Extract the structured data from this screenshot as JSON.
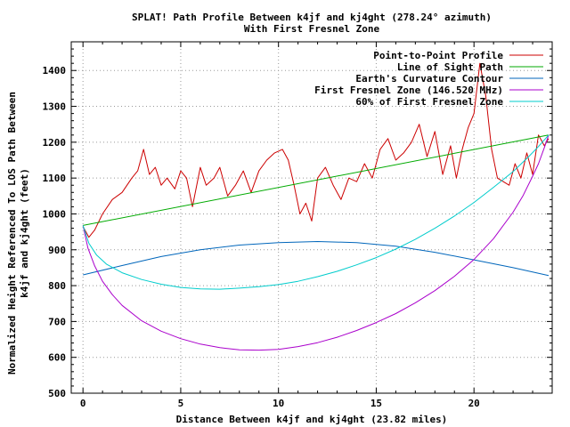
{
  "chart_data": {
    "type": "line",
    "title": "SPLAT! Path Profile Between k4jf and kj4ght (278.24° azimuth)",
    "subtitle": "With First Fresnel Zone",
    "xlabel": "Distance Between k4jf and kj4ght (23.82 miles)",
    "ylabel_line1": "Normalized Height Referenced To LOS Path Between",
    "ylabel_line2": "k4jf and kj4ght (feet)",
    "xlim": [
      -0.6,
      24.0
    ],
    "ylim": [
      500,
      1480
    ],
    "xticks": [
      0,
      5,
      10,
      15,
      20
    ],
    "yticks": [
      500,
      600,
      700,
      800,
      900,
      1000,
      1100,
      1200,
      1300,
      1400
    ],
    "grid": true,
    "legend_position": "top-right",
    "series": [
      {
        "name": "Point-to-Point Profile",
        "color": "#cc0000",
        "x": [
          0,
          0.3,
          0.6,
          1.0,
          1.5,
          2.0,
          2.5,
          2.8,
          3.1,
          3.4,
          3.7,
          4.0,
          4.3,
          4.7,
          5.0,
          5.3,
          5.6,
          6.0,
          6.3,
          6.7,
          7.0,
          7.4,
          7.8,
          8.2,
          8.6,
          9.0,
          9.4,
          9.8,
          10.2,
          10.5,
          10.8,
          11.1,
          11.4,
          11.7,
          12.0,
          12.4,
          12.8,
          13.2,
          13.6,
          14.0,
          14.4,
          14.8,
          15.2,
          15.6,
          16.0,
          16.4,
          16.8,
          17.2,
          17.6,
          18.0,
          18.4,
          18.8,
          19.1,
          19.4,
          19.7,
          20.0,
          20.3,
          20.6,
          20.9,
          21.2,
          21.5,
          21.8,
          22.1,
          22.4,
          22.7,
          23.0,
          23.3,
          23.6,
          23.82
        ],
        "y": [
          965,
          935,
          955,
          1000,
          1040,
          1060,
          1100,
          1120,
          1180,
          1110,
          1130,
          1080,
          1100,
          1070,
          1120,
          1100,
          1020,
          1130,
          1080,
          1100,
          1130,
          1050,
          1080,
          1120,
          1060,
          1120,
          1150,
          1170,
          1180,
          1150,
          1080,
          1000,
          1030,
          980,
          1100,
          1130,
          1080,
          1040,
          1100,
          1090,
          1140,
          1100,
          1180,
          1210,
          1150,
          1170,
          1200,
          1250,
          1160,
          1230,
          1110,
          1190,
          1100,
          1180,
          1240,
          1280,
          1420,
          1330,
          1180,
          1100,
          1090,
          1080,
          1140,
          1100,
          1170,
          1110,
          1220,
          1190,
          1210
        ]
      },
      {
        "name": "Line of Sight Path",
        "color": "#00aa00",
        "x": [
          0,
          23.82
        ],
        "y": [
          968,
          1220
        ]
      },
      {
        "name": "Earth's Curvature Contour",
        "color": "#0066bb",
        "x": [
          0,
          2,
          4,
          6,
          8,
          10,
          12,
          14,
          16,
          18,
          20,
          22,
          23.82
        ],
        "y": [
          830,
          856,
          881,
          900,
          913,
          920,
          923,
          920,
          910,
          893,
          872,
          850,
          828
        ]
      },
      {
        "name": "First Fresnel Zone (146.520 MHz)",
        "color": "#aa00cc",
        "x": [
          0,
          0.25,
          0.6,
          1.0,
          1.5,
          2,
          3,
          4,
          5,
          6,
          7,
          8,
          9,
          10,
          11,
          12,
          13,
          14,
          15,
          16,
          17,
          18,
          19,
          20,
          21,
          22,
          22.5,
          23,
          23.3,
          23.6,
          23.82
        ],
        "y": [
          968,
          905,
          855,
          812,
          775,
          745,
          702,
          673,
          652,
          637,
          627,
          621,
          620,
          622,
          630,
          641,
          656,
          675,
          697,
          722,
          752,
          786,
          826,
          873,
          931,
          1005,
          1050,
          1105,
          1140,
          1185,
          1220
        ]
      },
      {
        "name": "60% of First Fresnel Zone",
        "color": "#00cccc",
        "x": [
          0,
          0.3,
          0.7,
          1.2,
          2,
          3,
          4,
          5,
          6,
          7,
          8,
          9,
          10,
          11,
          12,
          13,
          14,
          15,
          16,
          17,
          18,
          19,
          20,
          21,
          22,
          22.8,
          23.3,
          23.82
        ],
        "y": [
          968,
          918,
          885,
          860,
          836,
          817,
          804,
          795,
          791,
          790,
          793,
          797,
          803,
          812,
          825,
          840,
          858,
          878,
          902,
          929,
          960,
          994,
          1032,
          1074,
          1118,
          1160,
          1188,
          1220
        ]
      }
    ]
  }
}
